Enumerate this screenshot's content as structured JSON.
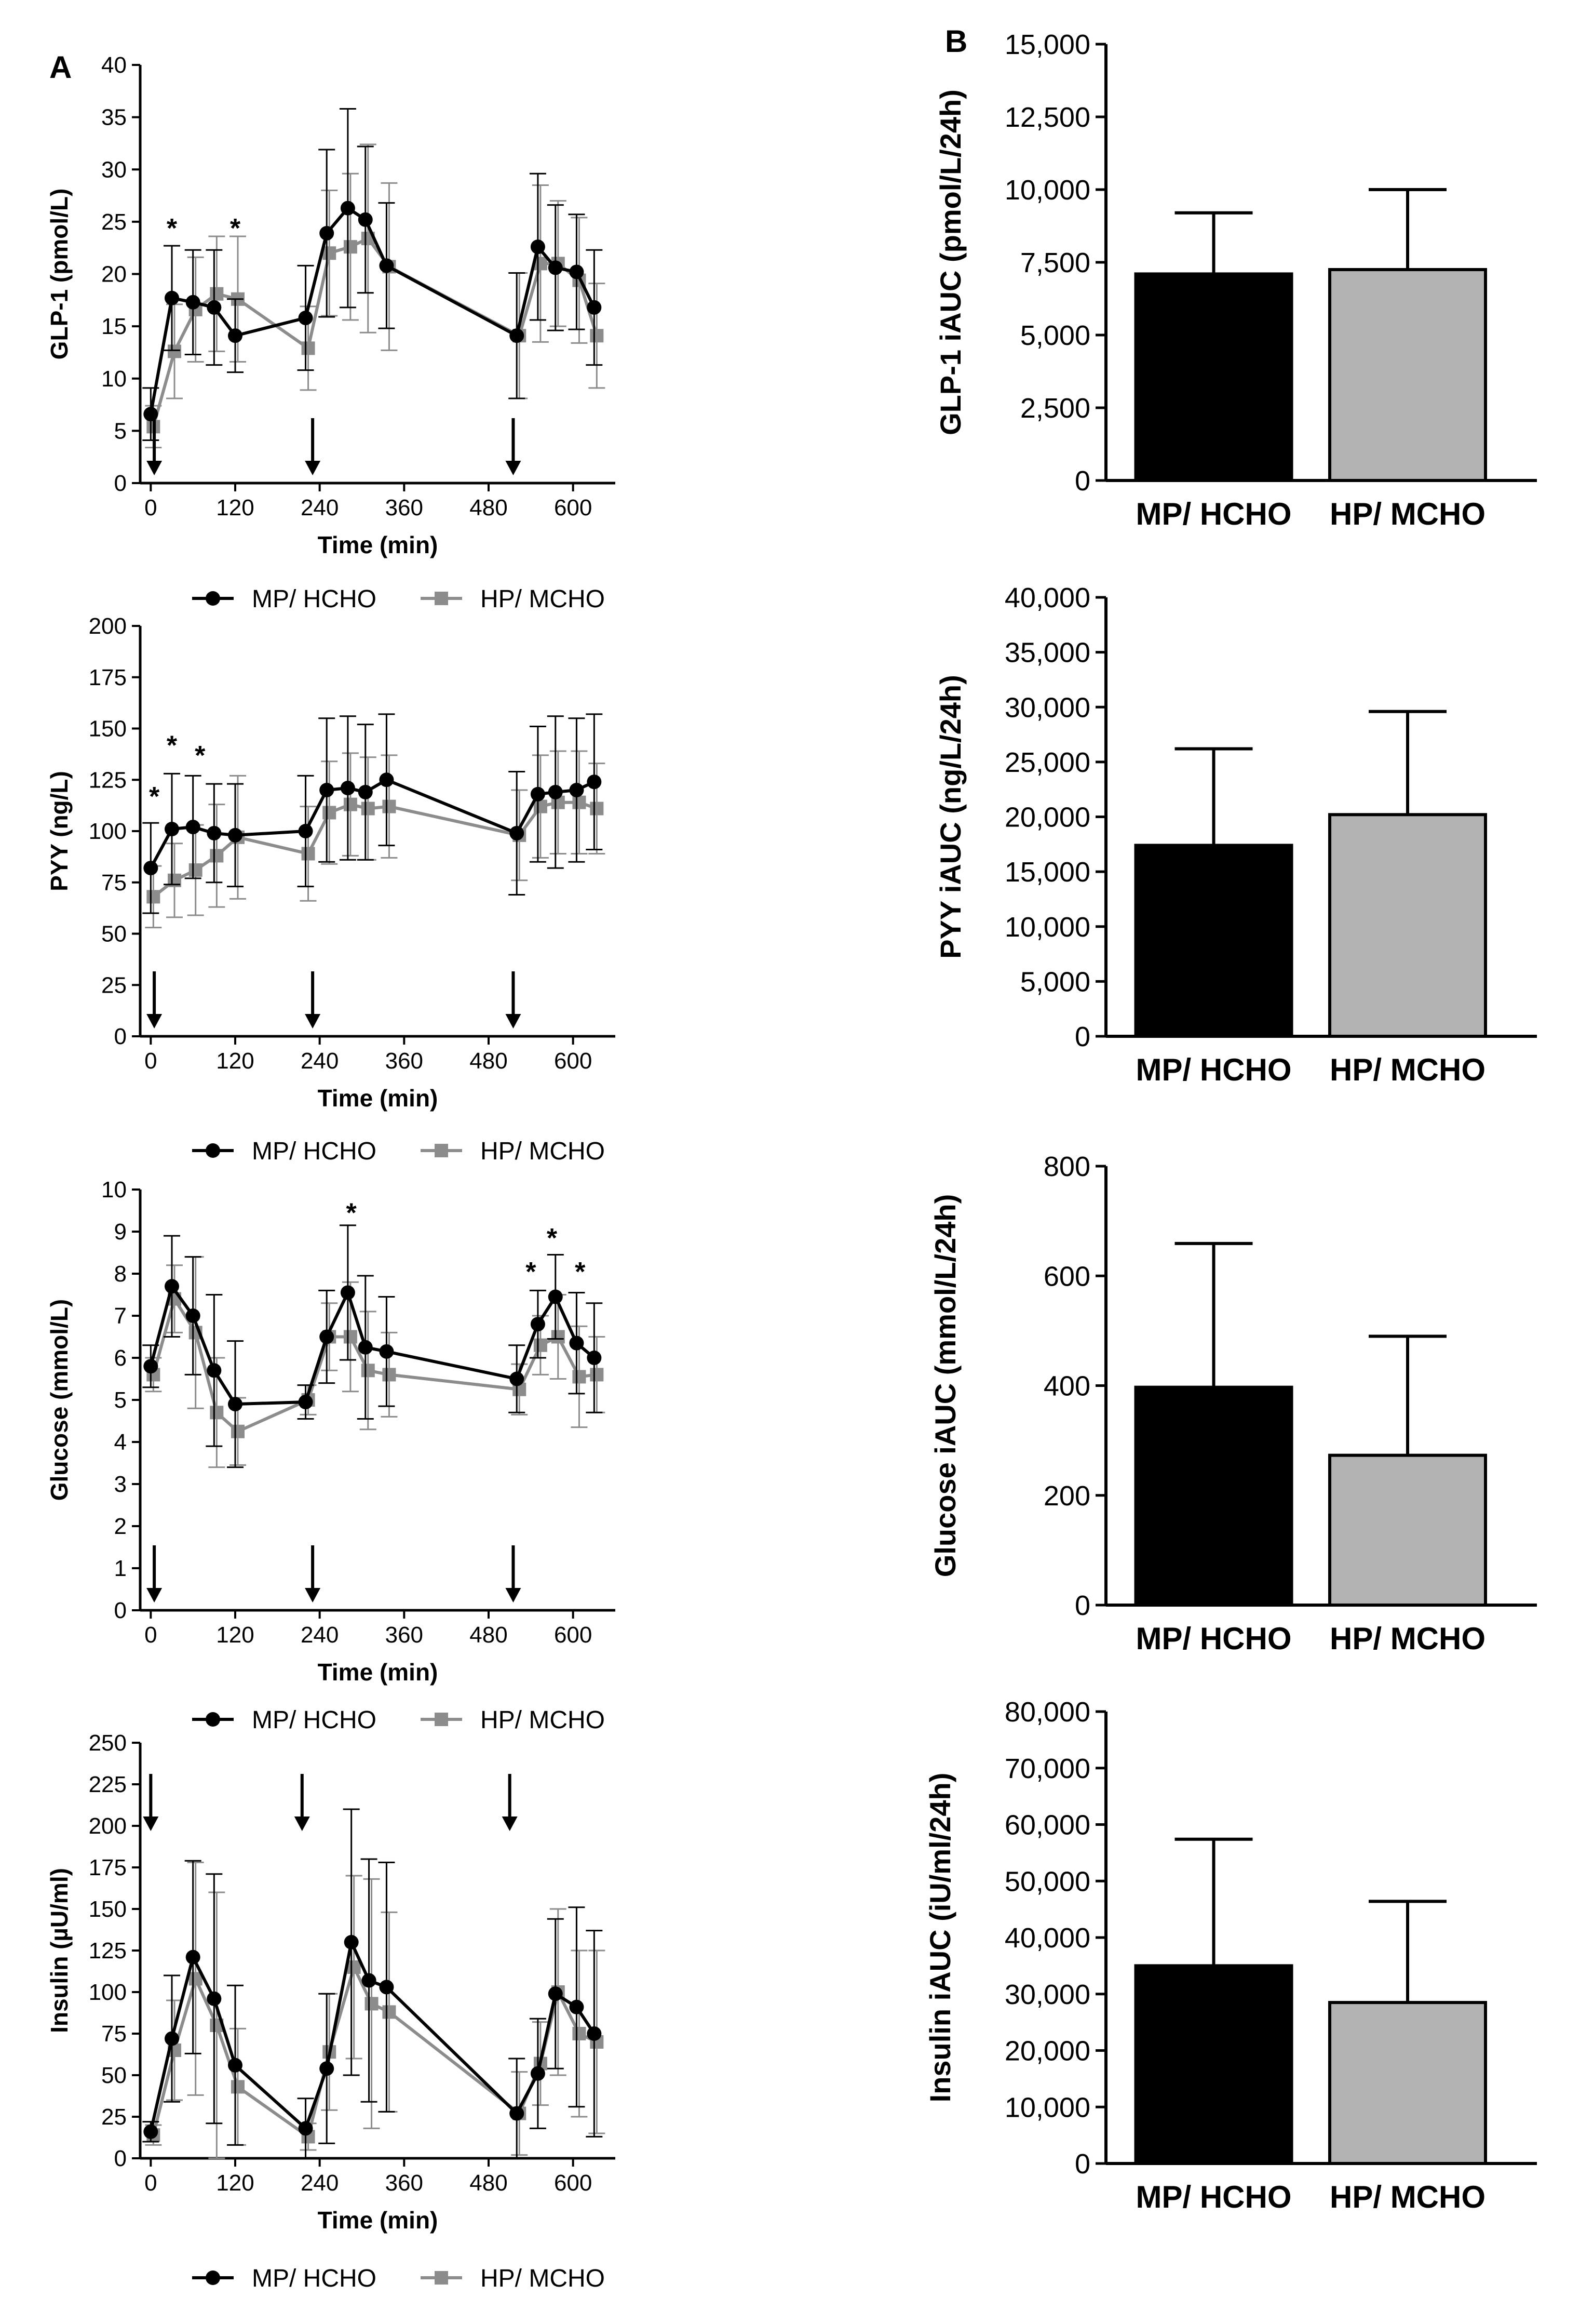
{
  "panel_labels": [
    "A",
    "B"
  ],
  "colors": {
    "mp_hcho": "#000000",
    "hp_mcho": "#8c8c8c",
    "hp_bar": "#b3b3b3"
  },
  "legend": {
    "series1": "MP/ HCHO",
    "series2": "HP/ MCHO"
  },
  "chart_data": [
    {
      "id": "glp1-time",
      "type": "line",
      "xlabel": "Time (min)",
      "ylabel": "GLP-1 (pmol/L)",
      "xlim": [
        -15,
        660
      ],
      "ylim": [
        0,
        40
      ],
      "xticks": [
        0,
        120,
        240,
        360,
        480,
        600
      ],
      "yticks": [
        0,
        5,
        10,
        15,
        20,
        25,
        30,
        35,
        40
      ],
      "arrows_at": [
        5,
        230,
        515
      ],
      "asterisks": [
        {
          "x": 30,
          "y": 25
        },
        {
          "x": 120,
          "y": 25
        }
      ],
      "series": [
        {
          "name": "MP/ HCHO",
          "x": [
            0,
            30,
            60,
            90,
            120,
            220,
            250,
            280,
            305,
            335,
            520,
            550,
            575,
            605,
            630
          ],
          "y": [
            6.6,
            17.7,
            17.3,
            16.8,
            14.1,
            15.8,
            23.9,
            26.3,
            25.2,
            20.8,
            14.1,
            22.6,
            20.6,
            20.2,
            16.8
          ],
          "err": [
            2.5,
            5,
            5,
            5.5,
            3.5,
            5,
            8,
            9.5,
            7,
            6,
            6,
            7,
            6,
            5.5,
            5.5
          ]
        },
        {
          "name": "HP/ MCHO",
          "x": [
            0,
            30,
            60,
            90,
            120,
            220,
            250,
            280,
            305,
            335,
            520,
            550,
            575,
            605,
            630
          ],
          "y": [
            5.4,
            12.6,
            16.6,
            18.1,
            17.6,
            12.9,
            22.0,
            22.6,
            23.4,
            20.7,
            14.1,
            21.0,
            21.0,
            19.4,
            14.1
          ],
          "err": [
            2,
            4.5,
            5,
            5.5,
            6,
            4,
            6,
            7,
            9,
            8,
            6,
            7.5,
            6,
            6,
            5
          ]
        }
      ]
    },
    {
      "id": "pyy-time",
      "type": "line",
      "xlabel": "Time (min)",
      "ylabel": "PYY (ng/L)",
      "xlim": [
        -15,
        660
      ],
      "ylim": [
        0,
        200
      ],
      "xticks": [
        0,
        120,
        240,
        360,
        480,
        600
      ],
      "yticks": [
        0,
        25,
        50,
        75,
        100,
        125,
        150,
        175,
        200
      ],
      "arrows_at": [
        5,
        230,
        515
      ],
      "asterisks": [
        {
          "x": 5,
          "y": 120
        },
        {
          "x": 30,
          "y": 145
        },
        {
          "x": 70,
          "y": 140
        }
      ],
      "series": [
        {
          "name": "MP/ HCHO",
          "x": [
            0,
            30,
            60,
            90,
            120,
            220,
            250,
            280,
            305,
            335,
            520,
            550,
            575,
            605,
            630
          ],
          "y": [
            82,
            101,
            102,
            99,
            98,
            100,
            120,
            121,
            119,
            125,
            99,
            118,
            119,
            120,
            124
          ],
          "err": [
            22,
            27,
            25,
            24,
            25,
            27,
            35,
            35,
            33,
            32,
            30,
            33,
            37,
            35,
            33
          ]
        },
        {
          "name": "HP/ MCHO",
          "x": [
            0,
            30,
            60,
            90,
            120,
            220,
            250,
            280,
            305,
            335,
            520,
            550,
            575,
            605,
            630
          ],
          "y": [
            68,
            76,
            81,
            88,
            97,
            89,
            109,
            113,
            111,
            112,
            98,
            112,
            114,
            114,
            111
          ],
          "err": [
            15,
            18,
            22,
            25,
            30,
            23,
            25,
            25,
            25,
            25,
            22,
            25,
            25,
            25,
            22
          ]
        }
      ]
    },
    {
      "id": "glucose-time",
      "type": "line",
      "xlabel": "Time (min)",
      "ylabel": "Glucose (mmol/L)",
      "xlim": [
        -15,
        660
      ],
      "ylim": [
        0,
        10
      ],
      "xticks": [
        0,
        120,
        240,
        360,
        480,
        600
      ],
      "yticks": [
        0,
        1,
        2,
        3,
        4,
        5,
        6,
        7,
        8,
        9,
        10
      ],
      "arrows_at": [
        5,
        230,
        515
      ],
      "asterisks": [
        {
          "x": 285,
          "y": 9.6
        },
        {
          "x": 540,
          "y": 8.2
        },
        {
          "x": 570,
          "y": 9.0
        },
        {
          "x": 610,
          "y": 8.2
        }
      ],
      "series": [
        {
          "name": "MP/ HCHO",
          "x": [
            0,
            30,
            60,
            90,
            120,
            220,
            250,
            280,
            305,
            335,
            520,
            550,
            575,
            605,
            630
          ],
          "y": [
            5.8,
            7.7,
            7.0,
            5.7,
            4.9,
            4.95,
            6.5,
            7.55,
            6.25,
            6.15,
            5.5,
            6.8,
            7.45,
            6.35,
            6.0
          ],
          "err": [
            0.5,
            1.2,
            1.4,
            1.8,
            1.5,
            0.4,
            1.1,
            1.6,
            1.7,
            1.3,
            0.8,
            0.8,
            1.0,
            1.2,
            1.3
          ]
        },
        {
          "name": "HP/ MCHO",
          "x": [
            0,
            30,
            60,
            90,
            120,
            220,
            250,
            280,
            305,
            335,
            520,
            550,
            575,
            605,
            630
          ],
          "y": [
            5.6,
            7.4,
            6.6,
            4.7,
            4.25,
            5.0,
            6.5,
            6.5,
            5.7,
            5.6,
            5.25,
            6.3,
            6.5,
            5.55,
            5.6
          ],
          "err": [
            0.4,
            0.8,
            1.8,
            1.3,
            0.8,
            0.35,
            0.8,
            1.3,
            1.4,
            1.0,
            0.6,
            0.7,
            1.0,
            1.2,
            0.9
          ]
        }
      ]
    },
    {
      "id": "insulin-time",
      "type": "line",
      "xlabel": "Time (min)",
      "ylabel": "Insulin (µU/ml)",
      "xlim": [
        -15,
        660
      ],
      "ylim": [
        0,
        250
      ],
      "xticks": [
        0,
        120,
        240,
        360,
        480,
        600
      ],
      "yticks": [
        0,
        25,
        50,
        75,
        100,
        125,
        150,
        175,
        200,
        225,
        250
      ],
      "arrows_at": [
        0,
        215,
        510
      ],
      "asterisks": [],
      "series": [
        {
          "name": "MP/ HCHO",
          "x": [
            0,
            30,
            60,
            90,
            120,
            220,
            250,
            285,
            310,
            335,
            520,
            550,
            575,
            605,
            630
          ],
          "y": [
            16,
            72,
            121,
            96,
            56,
            18,
            54,
            130,
            107,
            103,
            27,
            51,
            99,
            91,
            75
          ],
          "err": [
            6,
            38,
            58,
            75,
            48,
            18,
            45,
            80,
            73,
            75,
            33,
            33,
            45,
            60,
            62
          ]
        },
        {
          "name": "HP/ MCHO",
          "x": [
            0,
            30,
            60,
            90,
            120,
            220,
            250,
            285,
            310,
            335,
            520,
            550,
            575,
            605,
            630
          ],
          "y": [
            14,
            65,
            108,
            80,
            43,
            13,
            64,
            115,
            93,
            88,
            27,
            57,
            100,
            75,
            70
          ],
          "err": [
            6,
            30,
            70,
            80,
            35,
            8,
            35,
            55,
            75,
            60,
            25,
            25,
            50,
            50,
            55
          ]
        }
      ]
    },
    {
      "id": "glp1-iauc",
      "type": "bar",
      "ylabel": "GLP-1 iAUC (pmol/L/24h)",
      "categories": [
        "MP/ HCHO",
        "HP/ MCHO"
      ],
      "values": [
        7100,
        7250
      ],
      "errors": [
        2100,
        2750
      ],
      "ylim": [
        0,
        15000
      ],
      "ytick_labels": [
        "0",
        "2,500",
        "5,000",
        "7,500",
        "10,000",
        "12,500",
        "15,000"
      ]
    },
    {
      "id": "pyy-iauc",
      "type": "bar",
      "ylabel": "PYY iAUC (ng/L/24h)",
      "categories": [
        "MP/ HCHO",
        "HP/ MCHO"
      ],
      "values": [
        17400,
        20200
      ],
      "errors": [
        8800,
        9400
      ],
      "ylim": [
        0,
        40000
      ],
      "ytick_labels": [
        "0",
        "5,000",
        "10,000",
        "15,000",
        "20,000",
        "25,000",
        "30,000",
        "35,000",
        "40,000"
      ]
    },
    {
      "id": "glucose-iauc",
      "type": "bar",
      "ylabel": "Glucose iAUC (mmol/L/24h)",
      "categories": [
        "MP/ HCHO",
        "HP/ MCHO"
      ],
      "values": [
        397,
        273
      ],
      "errors": [
        262,
        217
      ],
      "ylim": [
        0,
        800
      ],
      "ytick_labels": [
        "0",
        "200",
        "400",
        "600",
        "800"
      ]
    },
    {
      "id": "insulin-iauc",
      "type": "bar",
      "ylabel": "Insulin iAUC (iU/ml/24h)",
      "categories": [
        "MP/ HCHO",
        "HP/ MCHO"
      ],
      "values": [
        35000,
        28500
      ],
      "errors": [
        22400,
        17900
      ],
      "ylim": [
        0,
        80000
      ],
      "ytick_labels": [
        "0",
        "10,000",
        "20,000",
        "30,000",
        "40,000",
        "50,000",
        "60,000",
        "70,000",
        "80,000"
      ]
    }
  ]
}
